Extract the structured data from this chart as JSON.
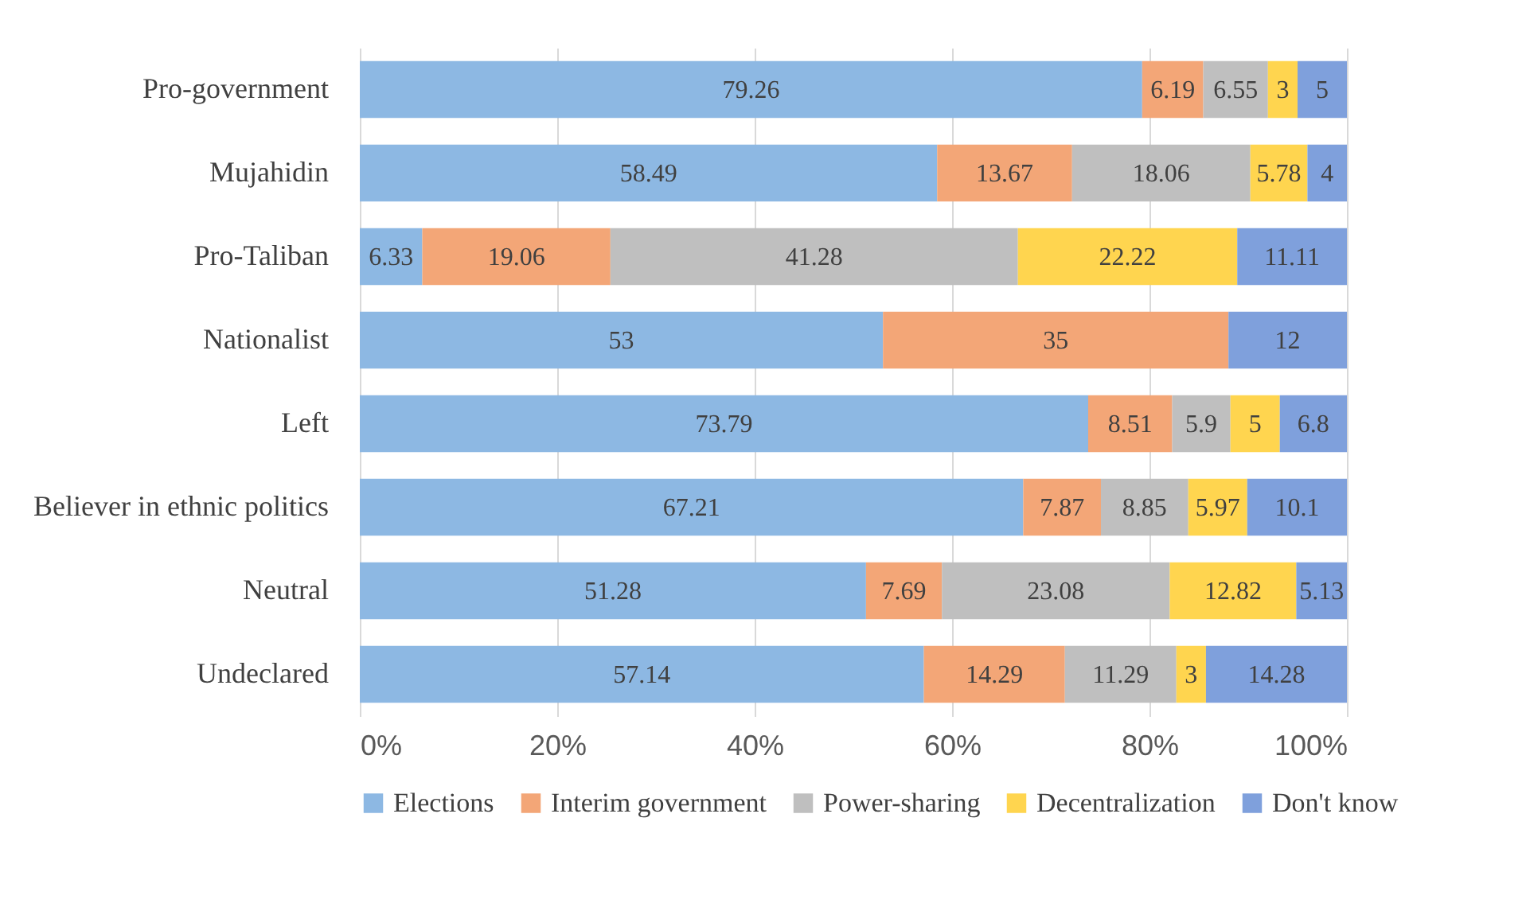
{
  "chart_data": {
    "type": "bar",
    "orientation": "horizontal",
    "stacked": true,
    "data_labels": true,
    "grid": "x",
    "legend": "bottom",
    "categories": [
      "Pro-government",
      "Mujahidin",
      "Pro-Taliban",
      "Nationalist",
      "Left",
      "Believer in ethnic politics",
      "Neutral",
      "Undeclared"
    ],
    "xlim": [
      0,
      100
    ],
    "xticks": [
      {
        "value": 0,
        "label": "0%"
      },
      {
        "value": 20,
        "label": "20%"
      },
      {
        "value": 40,
        "label": "40%"
      },
      {
        "value": 60,
        "label": "60%"
      },
      {
        "value": 80,
        "label": "80%"
      },
      {
        "value": 100,
        "label": "100%"
      }
    ],
    "series": [
      {
        "name": "Elections",
        "color": "#8db8e3",
        "values": [
          79.26,
          58.49,
          6.33,
          53,
          73.79,
          67.21,
          51.28,
          57.14
        ]
      },
      {
        "name": "Interim government",
        "color": "#f3a677",
        "values": [
          6.19,
          13.67,
          19.06,
          35,
          8.51,
          7.87,
          7.69,
          14.29
        ]
      },
      {
        "name": "Power-sharing",
        "color": "#bfbfbf",
        "values": [
          6.55,
          18.06,
          41.28,
          null,
          5.9,
          8.85,
          23.08,
          11.29
        ]
      },
      {
        "name": "Decentralization",
        "color": "#ffd54f",
        "values": [
          3,
          5.78,
          22.22,
          null,
          5,
          5.97,
          12.82,
          3
        ]
      },
      {
        "name": "Don't know",
        "color": "#7fa0dc",
        "values": [
          5,
          4,
          11.11,
          12,
          6.8,
          10.1,
          5.13,
          14.28
        ]
      }
    ]
  }
}
